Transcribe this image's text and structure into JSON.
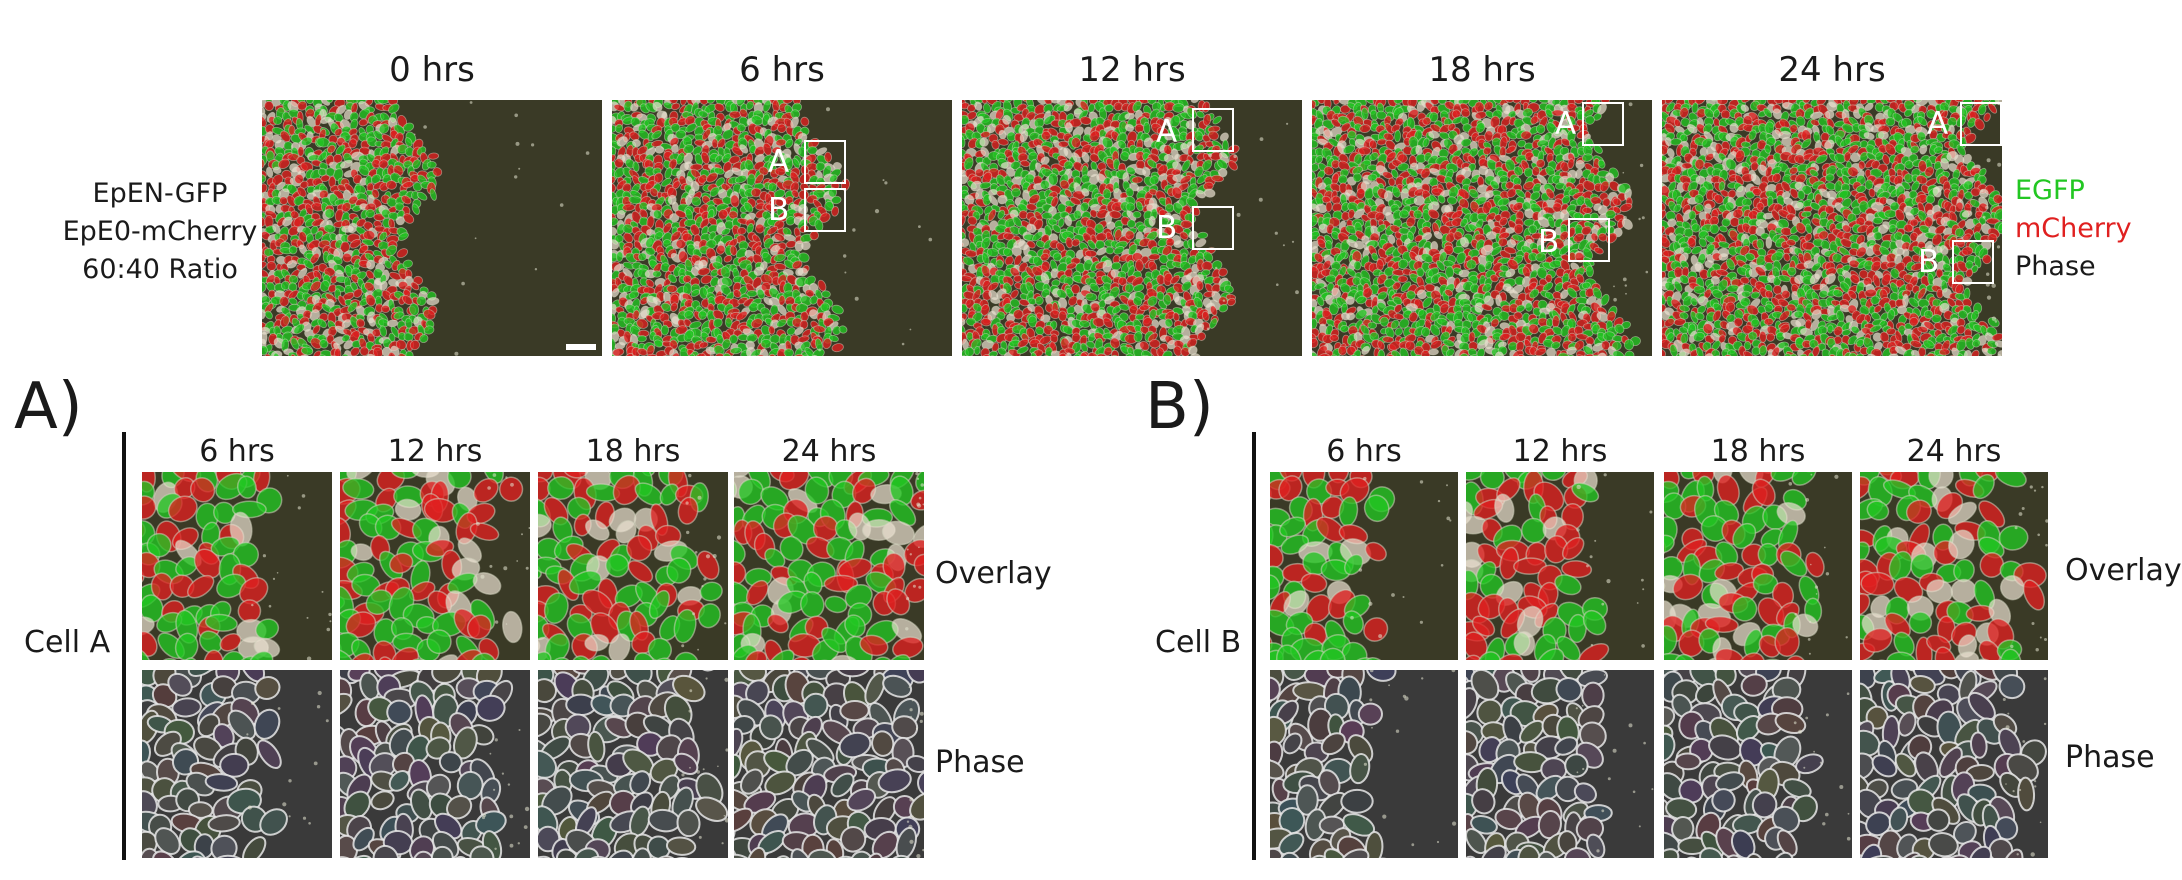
{
  "top": {
    "time_labels": [
      "0 hrs",
      "6 hrs",
      "12 hrs",
      "18 hrs",
      "24 hrs"
    ],
    "condition_lines": [
      "EpEN-GFP",
      "EpE0-mCherry",
      "60:40 Ratio"
    ],
    "legend": [
      {
        "label": "EGFP",
        "color": "#22c722"
      },
      {
        "label": "mCherry",
        "color": "#e02020"
      },
      {
        "label": "Phase",
        "color": "#1a1a1a"
      }
    ],
    "roi_labels": {
      "a": "A",
      "b": "B"
    }
  },
  "panel_a": {
    "header": "A)",
    "cell_label": "Cell A",
    "time_labels": [
      "6 hrs",
      "12 hrs",
      "18 hrs",
      "24 hrs"
    ],
    "row_labels": [
      "Overlay",
      "Phase"
    ]
  },
  "panel_b": {
    "header": "B)",
    "cell_label": "Cell B",
    "time_labels": [
      "6 hrs",
      "12 hrs",
      "18 hrs",
      "24 hrs"
    ],
    "row_labels": [
      "Overlay",
      "Phase"
    ]
  },
  "colors": {
    "egfp": "#22c722",
    "mcherry": "#e02020",
    "background_field": "#3a3a26",
    "phase_background": "#3a3a3a"
  }
}
